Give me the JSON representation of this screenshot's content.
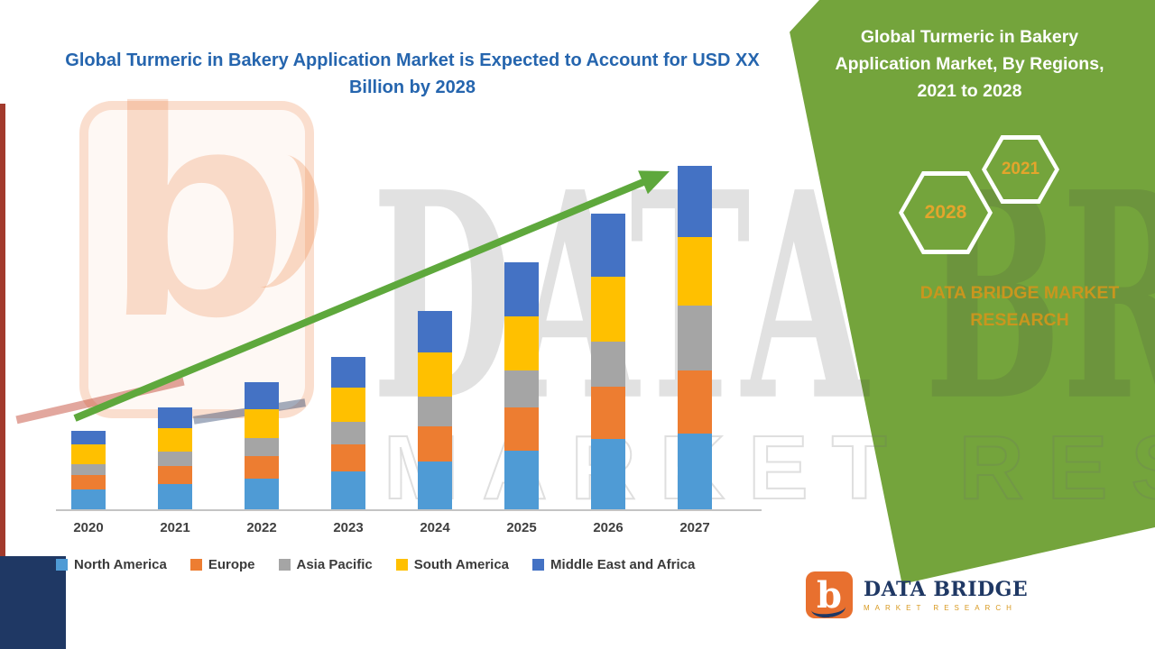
{
  "colors": {
    "panel_green": "#74a43c",
    "arrow_green": "#5ea83c",
    "title_blue": "#2565ae",
    "hexagon_gold": "#e3a52c",
    "brand_gold": "#c9961e",
    "navy": "#1f3864",
    "logo_orange": "#e8702f"
  },
  "main_title": "Global Turmeric in Bakery Application Market is Expected to Account for USD XX Billion by 2028",
  "watermarks": {
    "big_text": "DATA BRIDGE",
    "outline_text": "MARKET RESEARCH",
    "logo_letter": "b"
  },
  "side_panel": {
    "heading": "Global Turmeric in Bakery Application Market, By Regions, 2021 to 2028",
    "hexagon_back": "2028",
    "hexagon_front": "2021",
    "brand": "DATA BRIDGE MARKET RESEARCH"
  },
  "footer_logo": {
    "letter": "b",
    "name": "DATA BRIDGE",
    "tagline": "MARKET RESEARCH"
  },
  "chart_data": {
    "type": "bar",
    "stacked": true,
    "title": "Global Turmeric in Bakery Application Market is Expected to Account for USD XX Billion by 2028",
    "categories": [
      "2020",
      "2021",
      "2022",
      "2023",
      "2024",
      "2025",
      "2026",
      "2027"
    ],
    "series": [
      {
        "name": "North America",
        "color": "#4f9bd5",
        "values": [
          2.2,
          2.8,
          3.4,
          4.2,
          5.3,
          6.5,
          7.8,
          8.4
        ]
      },
      {
        "name": "Europe",
        "color": "#ed7d31",
        "values": [
          1.6,
          2.0,
          2.5,
          3.0,
          3.9,
          4.8,
          5.8,
          7.0
        ]
      },
      {
        "name": "Asia Pacific",
        "color": "#a5a5a5",
        "values": [
          1.2,
          1.6,
          2.0,
          2.5,
          3.3,
          4.1,
          5.0,
          7.2
        ]
      },
      {
        "name": "South America",
        "color": "#ffc000",
        "values": [
          2.2,
          2.6,
          3.2,
          3.8,
          4.9,
          6.0,
          7.2,
          7.6
        ]
      },
      {
        "name": "Middle East and Africa",
        "color": "#4472c4",
        "values": [
          1.5,
          2.3,
          3.0,
          3.4,
          4.6,
          6.0,
          7.0,
          7.9
        ]
      }
    ],
    "totals_estimated": [
      8.7,
      11.3,
      14.1,
      16.9,
      22.0,
      27.4,
      32.8,
      38.1
    ],
    "unit": "USD XX Billion (segment values estimated from bar heights, relative units)",
    "y_axis_visible": false,
    "grid": false,
    "legend_position": "bottom",
    "trend": "increasing",
    "annotations": [
      "green upward trend arrow spanning 2020 to 2027"
    ]
  }
}
